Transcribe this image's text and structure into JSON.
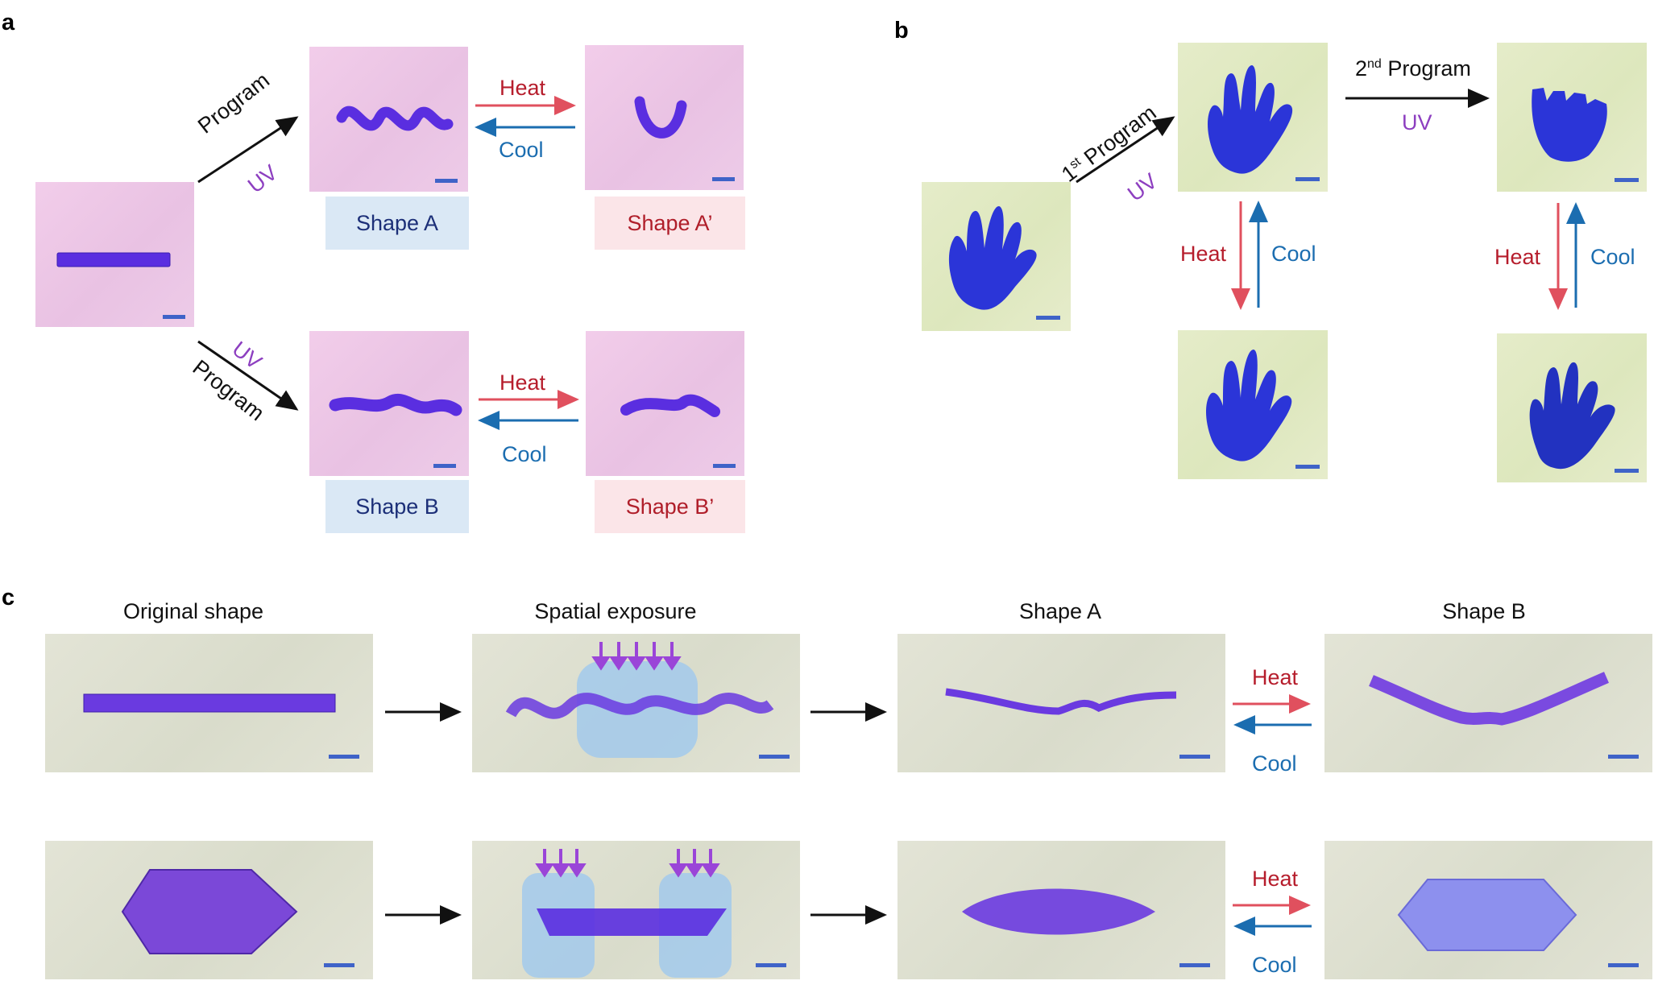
{
  "panels": {
    "a": "a",
    "b": "b",
    "c": "c"
  },
  "panel_a": {
    "program": "Program",
    "uv": "UV",
    "heat": "Heat",
    "cool": "Cool",
    "shape_a": "Shape A",
    "shape_a_prime": "Shape A’",
    "shape_b": "Shape B",
    "shape_b_prime": "Shape B’"
  },
  "panel_b": {
    "first_program_num": "1",
    "first_program_sup": "st",
    "first_program_text": " Program",
    "uv": "UV",
    "second_program_num": "2",
    "second_program_sup": "nd",
    "second_program_text": " Program",
    "heat": "Heat",
    "cool": "Cool"
  },
  "panel_c": {
    "headers": [
      "Original shape",
      "Spatial exposure",
      "Shape A",
      "Shape B"
    ],
    "heat": "Heat",
    "cool": "Cool"
  },
  "colors": {
    "heat_red": "#b61d2c",
    "heat_arrow": "#e0505e",
    "cool_blue": "#1b6db0",
    "uv_purple": "#8d3fc0",
    "sample_purple": "#5a2ee0",
    "scalebar": "#3f63c8"
  }
}
